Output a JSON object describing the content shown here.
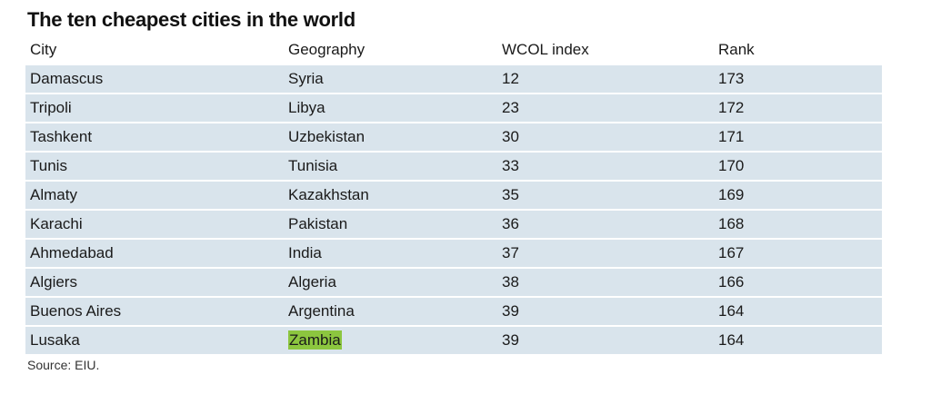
{
  "title": "The ten cheapest cities in the world",
  "columns": [
    "City",
    "Geography",
    "WCOL index",
    "Rank"
  ],
  "rows": [
    {
      "city": "Damascus",
      "geography": "Syria",
      "index": "12",
      "rank": "173"
    },
    {
      "city": "Tripoli",
      "geography": "Libya",
      "index": "23",
      "rank": "172"
    },
    {
      "city": "Tashkent",
      "geography": "Uzbekistan",
      "index": "30",
      "rank": "171"
    },
    {
      "city": "Tunis",
      "geography": "Tunisia",
      "index": "33",
      "rank": "170"
    },
    {
      "city": "Almaty",
      "geography": "Kazakhstan",
      "index": "35",
      "rank": "169"
    },
    {
      "city": "Karachi",
      "geography": "Pakistan",
      "index": "36",
      "rank": "168"
    },
    {
      "city": "Ahmedabad",
      "geography": "India",
      "index": "37",
      "rank": "167"
    },
    {
      "city": "Algiers",
      "geography": "Algeria",
      "index": "38",
      "rank": "166"
    },
    {
      "city": "Buenos Aires",
      "geography": "Argentina",
      "index": "39",
      "rank": "164"
    },
    {
      "city": "Lusaka",
      "geography": "Zambia",
      "index": "39",
      "rank": "164",
      "highlight": true
    }
  ],
  "source": "Source: EIU.",
  "colors": {
    "row_background": "#d9e4ec",
    "highlight": "#8cc63f"
  }
}
